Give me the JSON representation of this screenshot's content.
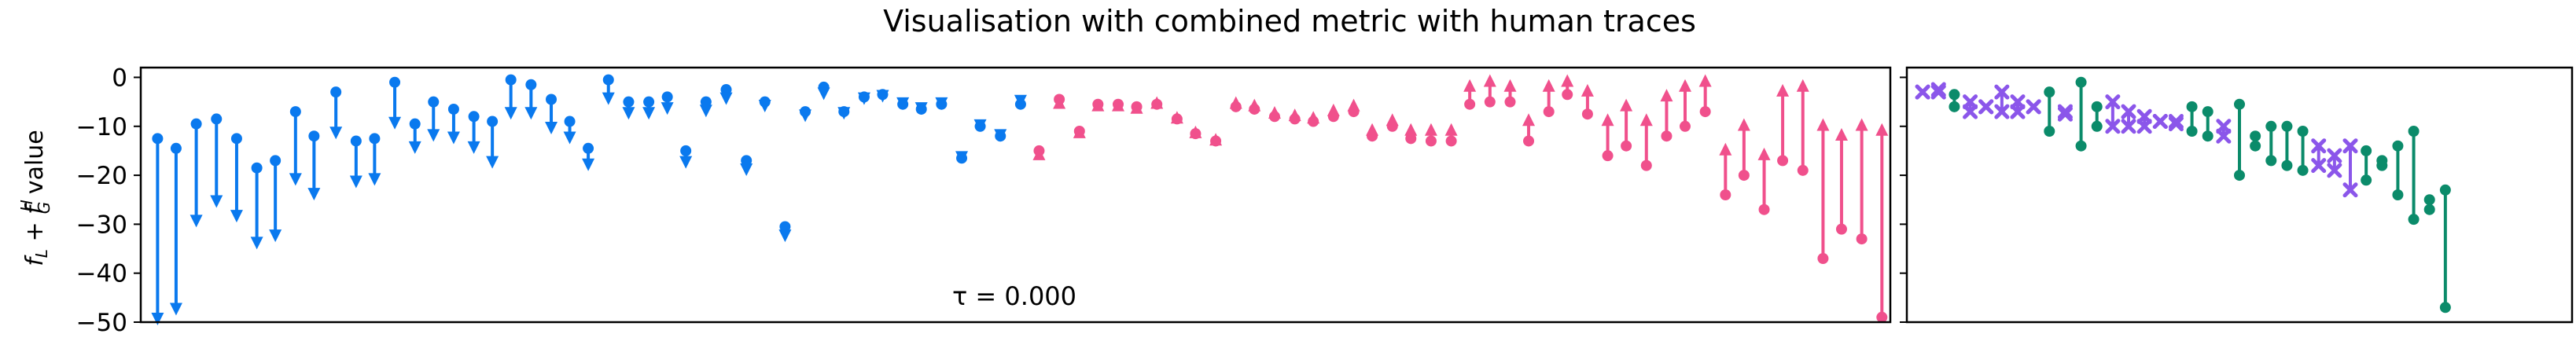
{
  "figure": {
    "title": "Visualisation with combined metric with human traces",
    "ylabel": "f_L + f_G^H value",
    "annotation": "τ = 0.000"
  },
  "colors": {
    "blue": "#0a79ee",
    "pink": "#f0508c",
    "purple": "#8b56ea",
    "green": "#0b8b6a"
  },
  "chart_data": [
    {
      "type": "scatter",
      "panel": "left",
      "ylim": [
        -50,
        2
      ],
      "yticks": [
        0,
        -10,
        -20,
        -30,
        -40,
        -50
      ],
      "xlim": [
        0,
        104
      ],
      "annotation": "τ = 0.000",
      "series": [
        {
          "color_key": "blue",
          "direction": "down",
          "points": [
            {
              "x": 1,
              "from": -12.5,
              "to": -50
            },
            {
              "x": 2.1,
              "from": -14.5,
              "to": -48
            },
            {
              "x": 3.3,
              "from": -9.5,
              "to": -30
            },
            {
              "x": 4.5,
              "from": -8.5,
              "to": -26
            },
            {
              "x": 5.7,
              "from": -12.5,
              "to": -29
            },
            {
              "x": 6.9,
              "from": -18.5,
              "to": -34.5
            },
            {
              "x": 8,
              "from": -17,
              "to": -33
            },
            {
              "x": 9.2,
              "from": -7,
              "to": -21.5
            },
            {
              "x": 10.3,
              "from": -12,
              "to": -24.5
            },
            {
              "x": 11.6,
              "from": -3,
              "to": -12
            },
            {
              "x": 12.8,
              "from": -13,
              "to": -22
            },
            {
              "x": 13.9,
              "from": -12.5,
              "to": -21.5
            },
            {
              "x": 15.1,
              "from": -1,
              "to": -10
            },
            {
              "x": 16.3,
              "from": -9.5,
              "to": -15
            },
            {
              "x": 17.4,
              "from": -5,
              "to": -12.5
            },
            {
              "x": 18.6,
              "from": -6.5,
              "to": -13
            },
            {
              "x": 19.8,
              "from": -8,
              "to": -15
            },
            {
              "x": 20.9,
              "from": -9,
              "to": -18
            },
            {
              "x": 22,
              "from": -0.5,
              "to": -8
            },
            {
              "x": 23.2,
              "from": -1.5,
              "to": -8
            },
            {
              "x": 24.4,
              "from": -4.5,
              "to": -11
            },
            {
              "x": 25.5,
              "from": -9,
              "to": -13
            },
            {
              "x": 26.6,
              "from": -14.5,
              "to": -18.5
            },
            {
              "x": 27.8,
              "from": -0.5,
              "to": -5
            },
            {
              "x": 29,
              "from": -5,
              "to": -8
            },
            {
              "x": 30.2,
              "from": -5,
              "to": -8
            },
            {
              "x": 31.3,
              "from": -4,
              "to": -7
            },
            {
              "x": 32.4,
              "from": -15,
              "to": -18
            },
            {
              "x": 33.6,
              "from": -5,
              "to": -7.5
            },
            {
              "x": 34.8,
              "from": -2.5,
              "to": -5
            },
            {
              "x": 36,
              "from": -17,
              "to": -19.5
            },
            {
              "x": 37.1,
              "from": -5,
              "to": -6.5
            },
            {
              "x": 38.3,
              "from": -30.5,
              "to": -33
            },
            {
              "x": 39.5,
              "from": -7,
              "to": -8.5
            },
            {
              "x": 40.6,
              "from": -2,
              "to": -4
            },
            {
              "x": 41.8,
              "from": -7,
              "to": -8
            },
            {
              "x": 43,
              "from": -4,
              "to": -5
            },
            {
              "x": 44.1,
              "from": -3.5,
              "to": -4.5
            },
            {
              "x": 45.3,
              "from": -5.5,
              "to": -6
            },
            {
              "x": 46.4,
              "from": -6.5,
              "to": -7
            },
            {
              "x": 47.6,
              "from": -5.5,
              "to": -6
            },
            {
              "x": 48.8,
              "from": -16.5,
              "to": -17
            },
            {
              "x": 49.9,
              "from": -10,
              "to": -10.5
            },
            {
              "x": 51.1,
              "from": -12,
              "to": -12.5
            },
            {
              "x": 52.3,
              "from": -5.5,
              "to": -5.5
            }
          ]
        },
        {
          "color_key": "pink",
          "direction": "up",
          "points": [
            {
              "x": 53.4,
              "from": -15,
              "to": -15
            },
            {
              "x": 54.6,
              "from": -4.5,
              "to": -4.5
            },
            {
              "x": 55.8,
              "from": -11,
              "to": -10.5
            },
            {
              "x": 56.9,
              "from": -5.5,
              "to": -5
            },
            {
              "x": 58.1,
              "from": -5.5,
              "to": -5
            },
            {
              "x": 59.2,
              "from": -6,
              "to": -5.5
            },
            {
              "x": 60.4,
              "from": -5.5,
              "to": -4.5
            },
            {
              "x": 61.6,
              "from": -8.5,
              "to": -7.5
            },
            {
              "x": 62.7,
              "from": -11.5,
              "to": -10.5
            },
            {
              "x": 63.9,
              "from": -13,
              "to": -12
            },
            {
              "x": 65.1,
              "from": -6,
              "to": -4.5
            },
            {
              "x": 66.2,
              "from": -6.5,
              "to": -5
            },
            {
              "x": 67.4,
              "from": -8,
              "to": -6.5
            },
            {
              "x": 68.6,
              "from": -8.5,
              "to": -7
            },
            {
              "x": 69.7,
              "from": -9,
              "to": -7.5
            },
            {
              "x": 70.9,
              "from": -8,
              "to": -6
            },
            {
              "x": 72.1,
              "from": -7,
              "to": -5
            },
            {
              "x": 73.2,
              "from": -12,
              "to": -10
            },
            {
              "x": 74.4,
              "from": -10,
              "to": -8
            },
            {
              "x": 75.5,
              "from": -12.5,
              "to": -10
            },
            {
              "x": 76.7,
              "from": -13,
              "to": -10
            },
            {
              "x": 77.9,
              "from": -13,
              "to": -10
            },
            {
              "x": 79,
              "from": -5.5,
              "to": -1
            },
            {
              "x": 80.2,
              "from": -5,
              "to": 0
            },
            {
              "x": 81.4,
              "from": -5,
              "to": -1
            },
            {
              "x": 82.5,
              "from": -13,
              "to": -8
            },
            {
              "x": 83.7,
              "from": -7,
              "to": -1
            },
            {
              "x": 84.8,
              "from": -3.5,
              "to": 0
            },
            {
              "x": 86,
              "from": -7.5,
              "to": -2
            },
            {
              "x": 87.2,
              "from": -16,
              "to": -8
            },
            {
              "x": 88.3,
              "from": -14,
              "to": -5
            },
            {
              "x": 89.5,
              "from": -18,
              "to": -8
            },
            {
              "x": 90.7,
              "from": -12,
              "to": -3
            },
            {
              "x": 91.8,
              "from": -10,
              "to": -1
            },
            {
              "x": 93,
              "from": -7,
              "to": 0
            },
            {
              "x": 94.2,
              "from": -24,
              "to": -14
            },
            {
              "x": 95.3,
              "from": -20,
              "to": -9
            },
            {
              "x": 96.5,
              "from": -27,
              "to": -15
            },
            {
              "x": 97.6,
              "from": -17,
              "to": -2
            },
            {
              "x": 98.8,
              "from": -19,
              "to": -1
            },
            {
              "x": 100,
              "from": -37,
              "to": -9
            },
            {
              "x": 101.1,
              "from": -31,
              "to": -11
            },
            {
              "x": 102.3,
              "from": -33,
              "to": -9
            },
            {
              "x": 103.5,
              "from": -49,
              "to": -10
            }
          ]
        }
      ]
    },
    {
      "type": "scatter",
      "panel": "right",
      "ylim": [
        -50,
        2
      ],
      "xlim": [
        0,
        42
      ],
      "items": [
        {
          "x": 1,
          "style": "x",
          "color_key": "purple",
          "from": -3,
          "to": -3
        },
        {
          "x": 2,
          "style": "x",
          "color_key": "purple",
          "from": -2.5,
          "to": -3
        },
        {
          "x": 3,
          "style": "dot",
          "color_key": "green",
          "from": -3.5,
          "to": -6
        },
        {
          "x": 4,
          "style": "x",
          "color_key": "purple",
          "from": -5,
          "to": -7
        },
        {
          "x": 5,
          "style": "x",
          "color_key": "purple",
          "from": -6,
          "to": -6
        },
        {
          "x": 6,
          "style": "x",
          "color_key": "purple",
          "from": -3,
          "to": -7
        },
        {
          "x": 7,
          "style": "x",
          "color_key": "purple",
          "from": -5,
          "to": -7
        },
        {
          "x": 8,
          "style": "x",
          "color_key": "purple",
          "from": -6,
          "to": -6
        },
        {
          "x": 9,
          "style": "dot",
          "color_key": "green",
          "from": -3,
          "to": -11
        },
        {
          "x": 10,
          "style": "x",
          "color_key": "purple",
          "from": -7,
          "to": -7.5
        },
        {
          "x": 11,
          "style": "dot",
          "color_key": "green",
          "from": -1,
          "to": -14
        },
        {
          "x": 12,
          "style": "dot",
          "color_key": "green",
          "from": -6,
          "to": -10
        },
        {
          "x": 13,
          "style": "x",
          "color_key": "purple",
          "from": -5,
          "to": -10
        },
        {
          "x": 14,
          "style": "x",
          "color_key": "purple",
          "from": -7,
          "to": -10
        },
        {
          "x": 15,
          "style": "x",
          "color_key": "purple",
          "from": -8,
          "to": -10
        },
        {
          "x": 16,
          "style": "x",
          "color_key": "purple",
          "from": -9,
          "to": -9
        },
        {
          "x": 17,
          "style": "x",
          "color_key": "purple",
          "from": -9,
          "to": -9.5
        },
        {
          "x": 18,
          "style": "dot",
          "color_key": "green",
          "from": -6,
          "to": -11
        },
        {
          "x": 19,
          "style": "dot",
          "color_key": "green",
          "from": -7,
          "to": -12
        },
        {
          "x": 20,
          "style": "x",
          "color_key": "purple",
          "from": -10,
          "to": -12
        },
        {
          "x": 21,
          "style": "dot",
          "color_key": "green",
          "from": -5.5,
          "to": -20
        },
        {
          "x": 22,
          "style": "dot",
          "color_key": "green",
          "from": -12,
          "to": -14
        },
        {
          "x": 23,
          "style": "dot",
          "color_key": "green",
          "from": -10,
          "to": -17
        },
        {
          "x": 24,
          "style": "dot",
          "color_key": "green",
          "from": -10,
          "to": -18
        },
        {
          "x": 25,
          "style": "dot",
          "color_key": "green",
          "from": -11,
          "to": -19
        },
        {
          "x": 26,
          "style": "x",
          "color_key": "purple",
          "from": -14,
          "to": -18
        },
        {
          "x": 27,
          "style": "x",
          "color_key": "purple",
          "from": -16,
          "to": -19
        },
        {
          "x": 28,
          "style": "x",
          "color_key": "purple",
          "from": -14,
          "to": -23
        },
        {
          "x": 29,
          "style": "dot",
          "color_key": "green",
          "from": -15,
          "to": -21
        },
        {
          "x": 30,
          "style": "dot",
          "color_key": "green",
          "from": -17,
          "to": -18
        },
        {
          "x": 31,
          "style": "dot",
          "color_key": "green",
          "from": -14,
          "to": -24
        },
        {
          "x": 32,
          "style": "dot",
          "color_key": "green",
          "from": -11,
          "to": -29
        },
        {
          "x": 33,
          "style": "dot",
          "color_key": "green",
          "from": -25,
          "to": -27
        },
        {
          "x": 34,
          "style": "dot",
          "color_key": "green",
          "from": -23,
          "to": -47
        }
      ]
    }
  ]
}
